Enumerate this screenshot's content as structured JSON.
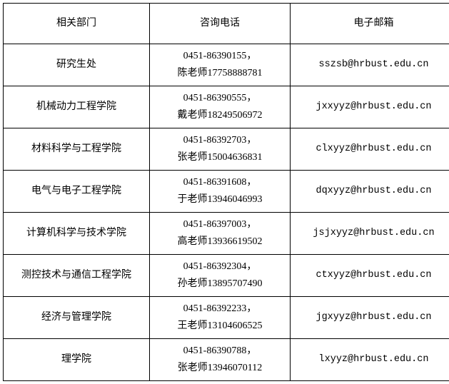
{
  "header": {
    "dept": "相关部门",
    "phone": "咨询电话",
    "email": "电子邮箱"
  },
  "rows": [
    {
      "dept": "研究生处",
      "phone_l1": "0451-86390155，",
      "phone_l2": "陈老师17758888781",
      "email": "sszsb@hrbust.edu.cn"
    },
    {
      "dept": "机械动力工程学院",
      "phone_l1": "0451-86390555，",
      "phone_l2": "戴老师18249506972",
      "email": "jxxyyz@hrbust.edu.cn"
    },
    {
      "dept": "材料科学与工程学院",
      "phone_l1": "0451-86392703，",
      "phone_l2": "张老师15004636831",
      "email": "clxyyz@hrbust.edu.cn"
    },
    {
      "dept": "电气与电子工程学院",
      "phone_l1": "0451-86391608，",
      "phone_l2": "于老师13946046993",
      "email": "dqxyyz@hrbust.edu.cn"
    },
    {
      "dept": "计算机科学与技术学院",
      "phone_l1": "0451-86397003，",
      "phone_l2": "高老师13936619502",
      "email": "jsjxyyz@hrbust.edu.cn"
    },
    {
      "dept": "测控技术与通信工程学院",
      "phone_l1": "0451-86392304，",
      "phone_l2": "孙老师13895707490",
      "email": "ctxyyz@hrbust.edu.cn"
    },
    {
      "dept": "经济与管理学院",
      "phone_l1": "0451-86392233，",
      "phone_l2": "王老师13104606525",
      "email": "jgxyyz@hrbust.edu.cn"
    },
    {
      "dept": "理学院",
      "phone_l1": "0451-86390788，",
      "phone_l2": "张老师13946070112",
      "email": "lxyyz@hrbust.edu.cn"
    }
  ]
}
